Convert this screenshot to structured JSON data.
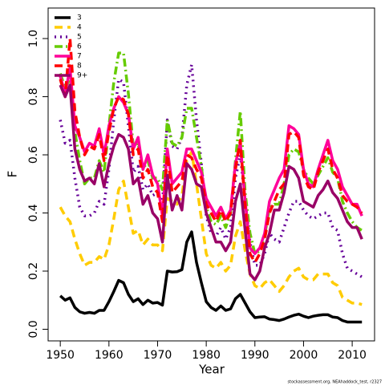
{
  "chart_data": {
    "type": "line",
    "xlabel": "Year",
    "ylabel": "F",
    "caption": "stockassessment.org, NEAhaddock_test, r2327",
    "legend": "top-left",
    "xlim": [
      1947.5,
      2014.6
    ],
    "ylim": [
      -0.04,
      1.105
    ],
    "xticks": [
      1950,
      1960,
      1970,
      1980,
      1990,
      2000,
      2010
    ],
    "yticks": [
      {
        "value": 0,
        "label": "0.0"
      },
      0.2,
      0.4,
      0.6,
      0.8,
      {
        "value": 1,
        "label": "1.0"
      }
    ],
    "x": [
      1950,
      1951,
      1952,
      1953,
      1954,
      1955,
      1956,
      1957,
      1958,
      1959,
      1960,
      1961,
      1962,
      1963,
      1964,
      1965,
      1966,
      1967,
      1968,
      1969,
      1970,
      1971,
      1972,
      1973,
      1974,
      1975,
      1976,
      1977,
      1978,
      1979,
      1980,
      1981,
      1982,
      1983,
      1984,
      1985,
      1986,
      1987,
      1988,
      1989,
      1990,
      1991,
      1992,
      1993,
      1994,
      1995,
      1996,
      1997,
      1998,
      1999,
      2000,
      2001,
      2002,
      2003,
      2004,
      2005,
      2006,
      2007,
      2008,
      2009,
      2010,
      2011,
      2012
    ],
    "series": [
      {
        "name": "3",
        "color": "#000000",
        "dash": "solid",
        "values": [
          0.115,
          0.1,
          0.108,
          0.075,
          0.06,
          0.055,
          0.058,
          0.055,
          0.065,
          0.065,
          0.095,
          0.13,
          0.168,
          0.16,
          0.12,
          0.095,
          0.105,
          0.085,
          0.1,
          0.09,
          0.092,
          0.083,
          0.2,
          0.197,
          0.198,
          0.205,
          0.3,
          0.335,
          0.23,
          0.16,
          0.095,
          0.075,
          0.065,
          0.08,
          0.065,
          0.07,
          0.105,
          0.12,
          0.09,
          0.06,
          0.04,
          0.042,
          0.043,
          0.035,
          0.033,
          0.03,
          0.035,
          0.042,
          0.048,
          0.052,
          0.045,
          0.04,
          0.045,
          0.048,
          0.05,
          0.05,
          0.042,
          0.04,
          0.03,
          0.025,
          0.025,
          0.025,
          0.025
        ]
      },
      {
        "name": "4",
        "color": "#ffcc00",
        "dash": "dashed",
        "values": [
          0.42,
          0.39,
          0.37,
          0.31,
          0.26,
          0.22,
          0.23,
          0.23,
          0.25,
          0.24,
          0.29,
          0.38,
          0.48,
          0.51,
          0.42,
          0.33,
          0.34,
          0.29,
          0.31,
          0.29,
          0.29,
          0.27,
          0.45,
          0.44,
          0.43,
          0.46,
          0.58,
          0.61,
          0.5,
          0.38,
          0.26,
          0.22,
          0.21,
          0.23,
          0.2,
          0.22,
          0.32,
          0.37,
          0.27,
          0.19,
          0.15,
          0.14,
          0.16,
          0.17,
          0.15,
          0.13,
          0.15,
          0.18,
          0.2,
          0.21,
          0.18,
          0.17,
          0.17,
          0.19,
          0.19,
          0.19,
          0.16,
          0.15,
          0.11,
          0.1,
          0.09,
          0.09,
          0.085
        ]
      },
      {
        "name": "5",
        "color": "#660099",
        "dash": "dotted",
        "values": [
          0.72,
          0.64,
          0.65,
          0.52,
          0.42,
          0.39,
          0.39,
          0.4,
          0.44,
          0.43,
          0.55,
          0.72,
          0.86,
          0.85,
          0.7,
          0.54,
          0.56,
          0.48,
          0.5,
          0.46,
          0.47,
          0.43,
          0.72,
          0.63,
          0.62,
          0.66,
          0.84,
          0.91,
          0.72,
          0.57,
          0.39,
          0.33,
          0.32,
          0.35,
          0.31,
          0.35,
          0.52,
          0.6,
          0.44,
          0.3,
          0.22,
          0.22,
          0.26,
          0.33,
          0.31,
          0.3,
          0.35,
          0.4,
          0.44,
          0.44,
          0.41,
          0.39,
          0.38,
          0.39,
          0.4,
          0.4,
          0.35,
          0.34,
          0.26,
          0.21,
          0.2,
          0.19,
          0.18
        ]
      },
      {
        "name": "6",
        "color": "#66cc00",
        "dash": "dashdot",
        "values": [
          0.88,
          0.83,
          0.86,
          0.68,
          0.58,
          0.5,
          0.52,
          0.52,
          0.58,
          0.54,
          0.7,
          0.85,
          0.95,
          0.95,
          0.81,
          0.63,
          0.64,
          0.55,
          0.58,
          0.52,
          0.52,
          0.48,
          0.72,
          0.64,
          0.63,
          0.66,
          0.76,
          0.76,
          0.66,
          0.56,
          0.42,
          0.37,
          0.36,
          0.39,
          0.35,
          0.4,
          0.58,
          0.75,
          0.47,
          0.33,
          0.26,
          0.27,
          0.32,
          0.42,
          0.43,
          0.43,
          0.5,
          0.6,
          0.62,
          0.61,
          0.55,
          0.52,
          0.5,
          0.53,
          0.56,
          0.59,
          0.54,
          0.52,
          0.44,
          0.4,
          0.37,
          0.35,
          0.34
        ]
      },
      {
        "name": "7",
        "color": "#ff0099",
        "dash": "solid",
        "values": [
          0.87,
          0.81,
          0.9,
          0.7,
          0.66,
          0.61,
          0.64,
          0.63,
          0.69,
          0.6,
          0.7,
          0.76,
          0.8,
          0.78,
          0.74,
          0.62,
          0.66,
          0.55,
          0.6,
          0.53,
          0.5,
          0.39,
          0.62,
          0.5,
          0.52,
          0.54,
          0.62,
          0.62,
          0.58,
          0.54,
          0.45,
          0.42,
          0.39,
          0.42,
          0.38,
          0.41,
          0.57,
          0.64,
          0.44,
          0.28,
          0.26,
          0.28,
          0.33,
          0.44,
          0.48,
          0.52,
          0.55,
          0.7,
          0.69,
          0.67,
          0.55,
          0.5,
          0.49,
          0.55,
          0.6,
          0.65,
          0.58,
          0.55,
          0.49,
          0.46,
          0.43,
          0.43,
          0.39
        ]
      },
      {
        "name": "8",
        "color": "#ff0000",
        "dash": "dashed",
        "values": [
          0.86,
          0.8,
          1.0,
          0.75,
          0.66,
          0.6,
          0.63,
          0.62,
          0.67,
          0.58,
          0.68,
          0.76,
          0.8,
          0.79,
          0.74,
          0.6,
          0.62,
          0.52,
          0.55,
          0.49,
          0.47,
          0.37,
          0.6,
          0.47,
          0.49,
          0.51,
          0.6,
          0.59,
          0.55,
          0.52,
          0.43,
          0.4,
          0.37,
          0.41,
          0.37,
          0.4,
          0.55,
          0.65,
          0.42,
          0.26,
          0.23,
          0.26,
          0.31,
          0.4,
          0.44,
          0.48,
          0.5,
          0.67,
          0.68,
          0.66,
          0.53,
          0.49,
          0.48,
          0.54,
          0.58,
          0.62,
          0.55,
          0.52,
          0.46,
          0.44,
          0.43,
          0.42,
          0.4
        ]
      },
      {
        "name": "9+",
        "color": "#990066",
        "dash": "solid",
        "values": [
          0.84,
          0.8,
          0.84,
          0.62,
          0.55,
          0.51,
          0.52,
          0.5,
          0.57,
          0.49,
          0.57,
          0.63,
          0.67,
          0.66,
          0.62,
          0.5,
          0.52,
          0.43,
          0.46,
          0.4,
          0.38,
          0.3,
          0.53,
          0.41,
          0.46,
          0.41,
          0.57,
          0.55,
          0.5,
          0.49,
          0.4,
          0.35,
          0.3,
          0.3,
          0.27,
          0.3,
          0.44,
          0.5,
          0.34,
          0.19,
          0.17,
          0.2,
          0.28,
          0.33,
          0.41,
          0.41,
          0.47,
          0.56,
          0.55,
          0.52,
          0.44,
          0.43,
          0.42,
          0.46,
          0.48,
          0.51,
          0.47,
          0.45,
          0.41,
          0.37,
          0.35,
          0.35,
          0.31
        ]
      }
    ]
  }
}
